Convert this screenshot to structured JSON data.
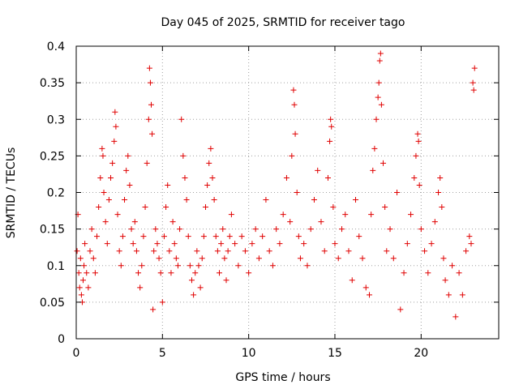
{
  "chart_data": {
    "type": "scatter",
    "title": "Day 045 of 2025, SRMTID for receiver tago",
    "xlabel": "GPS time / hours",
    "ylabel": "SRMTID / TECUs",
    "xlim": [
      0,
      24.5
    ],
    "ylim": [
      0,
      0.4
    ],
    "xticks": [
      0,
      5,
      10,
      15,
      20
    ],
    "xtick_labels": [
      "0",
      "5",
      "10",
      "15",
      "20"
    ],
    "yticks": [
      0,
      0.05,
      0.1,
      0.15,
      0.2,
      0.25,
      0.3,
      0.35,
      0.4
    ],
    "ytick_labels": [
      "0",
      "0.05",
      "0.1",
      "0.15",
      "0.2",
      "0.25",
      "0.3",
      "0.35",
      "0.4"
    ],
    "grid": true,
    "marker": "+",
    "color": "#e00000",
    "series": [
      {
        "name": "SRMTID",
        "points": [
          [
            0.05,
            0.12
          ],
          [
            0.1,
            0.17
          ],
          [
            0.15,
            0.09
          ],
          [
            0.2,
            0.07
          ],
          [
            0.25,
            0.11
          ],
          [
            0.3,
            0.06
          ],
          [
            0.35,
            0.05
          ],
          [
            0.4,
            0.08
          ],
          [
            0.45,
            0.1
          ],
          [
            0.5,
            0.13
          ],
          [
            0.6,
            0.09
          ],
          [
            0.7,
            0.07
          ],
          [
            0.8,
            0.12
          ],
          [
            0.9,
            0.15
          ],
          [
            1.0,
            0.11
          ],
          [
            1.1,
            0.09
          ],
          [
            1.2,
            0.14
          ],
          [
            1.3,
            0.18
          ],
          [
            1.4,
            0.22
          ],
          [
            1.5,
            0.26
          ],
          [
            1.55,
            0.25
          ],
          [
            1.6,
            0.2
          ],
          [
            1.7,
            0.16
          ],
          [
            1.8,
            0.13
          ],
          [
            1.9,
            0.19
          ],
          [
            2.0,
            0.22
          ],
          [
            2.1,
            0.24
          ],
          [
            2.2,
            0.27
          ],
          [
            2.25,
            0.31
          ],
          [
            2.3,
            0.29
          ],
          [
            2.4,
            0.17
          ],
          [
            2.5,
            0.12
          ],
          [
            2.6,
            0.1
          ],
          [
            2.7,
            0.14
          ],
          [
            2.8,
            0.19
          ],
          [
            2.9,
            0.23
          ],
          [
            3.0,
            0.25
          ],
          [
            3.1,
            0.21
          ],
          [
            3.2,
            0.15
          ],
          [
            3.3,
            0.13
          ],
          [
            3.4,
            0.16
          ],
          [
            3.5,
            0.12
          ],
          [
            3.6,
            0.09
          ],
          [
            3.7,
            0.07
          ],
          [
            3.8,
            0.1
          ],
          [
            3.9,
            0.14
          ],
          [
            4.0,
            0.18
          ],
          [
            4.1,
            0.24
          ],
          [
            4.2,
            0.3
          ],
          [
            4.25,
            0.37
          ],
          [
            4.3,
            0.35
          ],
          [
            4.35,
            0.32
          ],
          [
            4.4,
            0.28
          ],
          [
            4.45,
            0.04
          ],
          [
            4.5,
            0.12
          ],
          [
            4.6,
            0.15
          ],
          [
            4.7,
            0.13
          ],
          [
            4.8,
            0.11
          ],
          [
            4.9,
            0.09
          ],
          [
            5.0,
            0.05
          ],
          [
            5.1,
            0.14
          ],
          [
            5.2,
            0.18
          ],
          [
            5.3,
            0.21
          ],
          [
            5.4,
            0.12
          ],
          [
            5.5,
            0.09
          ],
          [
            5.6,
            0.16
          ],
          [
            5.7,
            0.13
          ],
          [
            5.8,
            0.11
          ],
          [
            5.9,
            0.1
          ],
          [
            6.0,
            0.15
          ],
          [
            6.1,
            0.3
          ],
          [
            6.2,
            0.25
          ],
          [
            6.3,
            0.22
          ],
          [
            6.4,
            0.19
          ],
          [
            6.5,
            0.14
          ],
          [
            6.6,
            0.1
          ],
          [
            6.7,
            0.08
          ],
          [
            6.8,
            0.06
          ],
          [
            6.9,
            0.09
          ],
          [
            7.0,
            0.12
          ],
          [
            7.1,
            0.1
          ],
          [
            7.2,
            0.07
          ],
          [
            7.3,
            0.11
          ],
          [
            7.4,
            0.14
          ],
          [
            7.5,
            0.18
          ],
          [
            7.6,
            0.21
          ],
          [
            7.7,
            0.24
          ],
          [
            7.8,
            0.26
          ],
          [
            7.9,
            0.22
          ],
          [
            8.0,
            0.19
          ],
          [
            8.1,
            0.14
          ],
          [
            8.2,
            0.12
          ],
          [
            8.3,
            0.09
          ],
          [
            8.4,
            0.13
          ],
          [
            8.5,
            0.15
          ],
          [
            8.6,
            0.11
          ],
          [
            8.7,
            0.08
          ],
          [
            8.8,
            0.12
          ],
          [
            8.9,
            0.14
          ],
          [
            9.0,
            0.17
          ],
          [
            9.2,
            0.13
          ],
          [
            9.4,
            0.1
          ],
          [
            9.6,
            0.14
          ],
          [
            9.8,
            0.12
          ],
          [
            10.0,
            0.09
          ],
          [
            10.2,
            0.13
          ],
          [
            10.4,
            0.15
          ],
          [
            10.6,
            0.11
          ],
          [
            10.8,
            0.14
          ],
          [
            11.0,
            0.19
          ],
          [
            11.2,
            0.12
          ],
          [
            11.4,
            0.1
          ],
          [
            11.6,
            0.15
          ],
          [
            11.8,
            0.13
          ],
          [
            12.0,
            0.17
          ],
          [
            12.2,
            0.22
          ],
          [
            12.4,
            0.16
          ],
          [
            12.5,
            0.25
          ],
          [
            12.6,
            0.34
          ],
          [
            12.65,
            0.32
          ],
          [
            12.7,
            0.28
          ],
          [
            12.8,
            0.2
          ],
          [
            12.9,
            0.14
          ],
          [
            13.0,
            0.11
          ],
          [
            13.2,
            0.13
          ],
          [
            13.4,
            0.1
          ],
          [
            13.6,
            0.15
          ],
          [
            13.8,
            0.19
          ],
          [
            14.0,
            0.23
          ],
          [
            14.2,
            0.16
          ],
          [
            14.4,
            0.12
          ],
          [
            14.6,
            0.22
          ],
          [
            14.7,
            0.27
          ],
          [
            14.75,
            0.3
          ],
          [
            14.8,
            0.29
          ],
          [
            14.9,
            0.18
          ],
          [
            15.0,
            0.13
          ],
          [
            15.2,
            0.11
          ],
          [
            15.4,
            0.15
          ],
          [
            15.6,
            0.17
          ],
          [
            15.8,
            0.12
          ],
          [
            16.0,
            0.08
          ],
          [
            16.2,
            0.19
          ],
          [
            16.4,
            0.14
          ],
          [
            16.6,
            0.11
          ],
          [
            16.8,
            0.07
          ],
          [
            17.0,
            0.06
          ],
          [
            17.1,
            0.17
          ],
          [
            17.2,
            0.23
          ],
          [
            17.3,
            0.26
          ],
          [
            17.4,
            0.3
          ],
          [
            17.5,
            0.33
          ],
          [
            17.55,
            0.35
          ],
          [
            17.6,
            0.38
          ],
          [
            17.65,
            0.39
          ],
          [
            17.7,
            0.32
          ],
          [
            17.8,
            0.24
          ],
          [
            17.9,
            0.18
          ],
          [
            18.0,
            0.12
          ],
          [
            18.2,
            0.15
          ],
          [
            18.4,
            0.11
          ],
          [
            18.6,
            0.2
          ],
          [
            18.8,
            0.04
          ],
          [
            19.0,
            0.09
          ],
          [
            19.2,
            0.13
          ],
          [
            19.4,
            0.17
          ],
          [
            19.6,
            0.22
          ],
          [
            19.7,
            0.25
          ],
          [
            19.8,
            0.28
          ],
          [
            19.85,
            0.27
          ],
          [
            19.9,
            0.21
          ],
          [
            20.0,
            0.15
          ],
          [
            20.2,
            0.12
          ],
          [
            20.4,
            0.09
          ],
          [
            20.6,
            0.13
          ],
          [
            20.8,
            0.16
          ],
          [
            21.0,
            0.2
          ],
          [
            21.1,
            0.22
          ],
          [
            21.2,
            0.18
          ],
          [
            21.3,
            0.11
          ],
          [
            21.4,
            0.08
          ],
          [
            21.6,
            0.06
          ],
          [
            21.8,
            0.1
          ],
          [
            22.0,
            0.03
          ],
          [
            22.2,
            0.09
          ],
          [
            22.4,
            0.06
          ],
          [
            22.6,
            0.12
          ],
          [
            22.8,
            0.14
          ],
          [
            22.9,
            0.13
          ],
          [
            23.0,
            0.35
          ],
          [
            23.05,
            0.34
          ],
          [
            23.1,
            0.37
          ]
        ]
      }
    ]
  }
}
